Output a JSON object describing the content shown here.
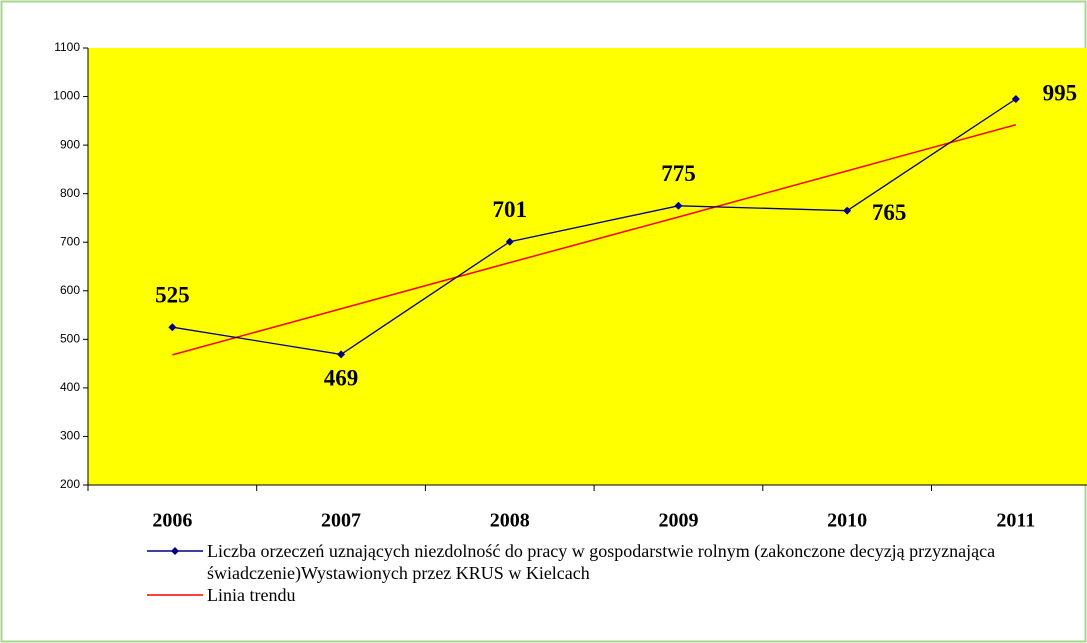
{
  "chart_data": {
    "type": "line",
    "categories": [
      "2006",
      "2007",
      "2008",
      "2009",
      "2010",
      "2011"
    ],
    "series": [
      {
        "name": "Liczba orzeczeń uznających niezdolność do pracy w gospodarstwie rolnym (zakonczone decyzją przyznająca świadczenie)Wystawionych  przez KRUS w Kielcach",
        "color": "#000080",
        "values": [
          525,
          469,
          701,
          775,
          765,
          995
        ]
      },
      {
        "name": "Linia trendu",
        "color": "#ff0000",
        "values": [
          468,
          563,
          658,
          752,
          847,
          942
        ]
      }
    ],
    "ylim": [
      200,
      1100
    ],
    "yticks": [
      200,
      300,
      400,
      500,
      600,
      700,
      800,
      900,
      1000,
      1100
    ]
  }
}
